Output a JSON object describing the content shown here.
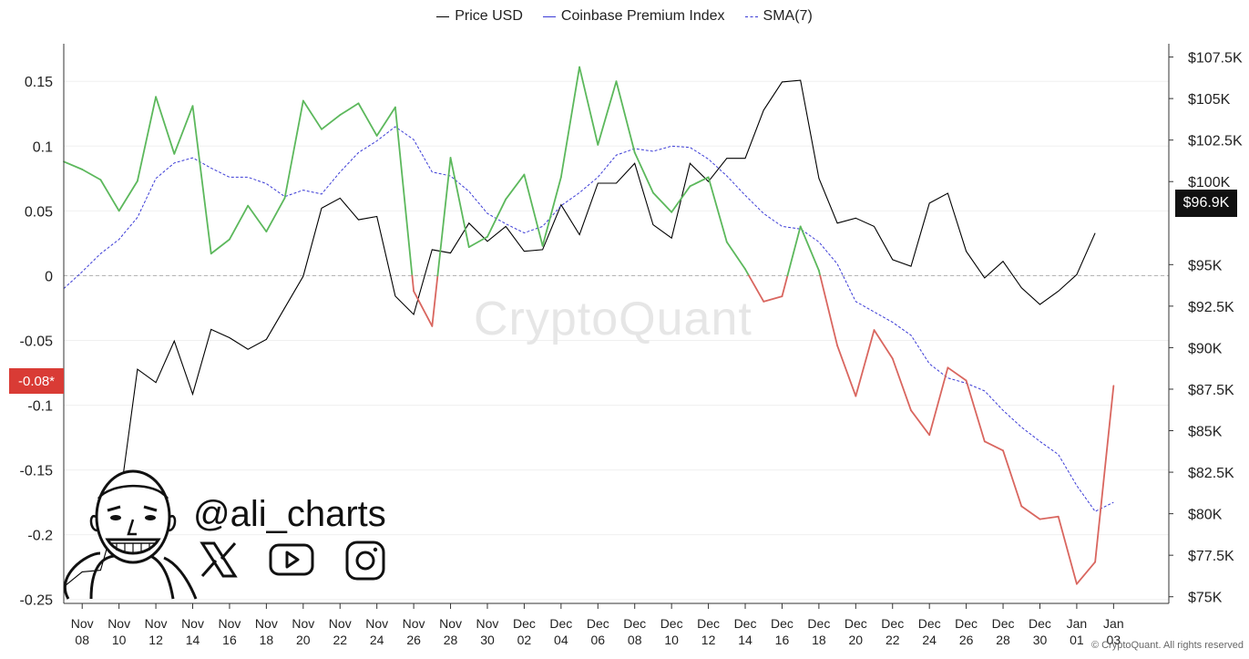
{
  "legend": [
    {
      "label": "Price USD",
      "color": "#000000",
      "style": "solid"
    },
    {
      "label": "Coinbase Premium Index",
      "color": "#3b3bd6",
      "style": "solid"
    },
    {
      "label": "SMA(7)",
      "color": "#3b3bd6",
      "style": "dashed"
    }
  ],
  "badges": {
    "left_value": "-0.08*",
    "right_value": "$96.9K"
  },
  "watermark": "CryptoQuant",
  "copyright": "© CryptoQuant. All rights reserved",
  "branding": {
    "handle": "@ali_charts",
    "icons": [
      "x-logo-icon",
      "youtube-icon",
      "instagram-icon"
    ]
  },
  "chart_data": {
    "type": "line",
    "x_tick_labels": [
      [
        "Nov",
        "08"
      ],
      [
        "Nov",
        "10"
      ],
      [
        "Nov",
        "12"
      ],
      [
        "Nov",
        "14"
      ],
      [
        "Nov",
        "16"
      ],
      [
        "Nov",
        "18"
      ],
      [
        "Nov",
        "20"
      ],
      [
        "Nov",
        "22"
      ],
      [
        "Nov",
        "24"
      ],
      [
        "Nov",
        "26"
      ],
      [
        "Nov",
        "28"
      ],
      [
        "Nov",
        "30"
      ],
      [
        "Dec",
        "02"
      ],
      [
        "Dec",
        "04"
      ],
      [
        "Dec",
        "06"
      ],
      [
        "Dec",
        "08"
      ],
      [
        "Dec",
        "10"
      ],
      [
        "Dec",
        "12"
      ],
      [
        "Dec",
        "14"
      ],
      [
        "Dec",
        "16"
      ],
      [
        "Dec",
        "18"
      ],
      [
        "Dec",
        "20"
      ],
      [
        "Dec",
        "22"
      ],
      [
        "Dec",
        "24"
      ],
      [
        "Dec",
        "26"
      ],
      [
        "Dec",
        "28"
      ],
      [
        "Dec",
        "30"
      ],
      [
        "Jan",
        "01"
      ],
      [
        "Jan",
        "03"
      ]
    ],
    "x_dates": [
      "2024-11-07",
      "2024-11-08",
      "2024-11-09",
      "2024-11-10",
      "2024-11-11",
      "2024-11-12",
      "2024-11-13",
      "2024-11-14",
      "2024-11-15",
      "2024-11-16",
      "2024-11-17",
      "2024-11-18",
      "2024-11-19",
      "2024-11-20",
      "2024-11-21",
      "2024-11-22",
      "2024-11-23",
      "2024-11-24",
      "2024-11-25",
      "2024-11-26",
      "2024-11-27",
      "2024-11-28",
      "2024-11-29",
      "2024-11-30",
      "2024-12-01",
      "2024-12-02",
      "2024-12-03",
      "2024-12-04",
      "2024-12-05",
      "2024-12-06",
      "2024-12-07",
      "2024-12-08",
      "2024-12-09",
      "2024-12-10",
      "2024-12-11",
      "2024-12-12",
      "2024-12-13",
      "2024-12-14",
      "2024-12-15",
      "2024-12-16",
      "2024-12-17",
      "2024-12-18",
      "2024-12-19",
      "2024-12-20",
      "2024-12-21",
      "2024-12-22",
      "2024-12-23",
      "2024-12-24",
      "2024-12-25",
      "2024-12-26",
      "2024-12-27",
      "2024-12-28",
      "2024-12-29",
      "2024-12-30",
      "2024-12-31",
      "2025-01-01",
      "2025-01-02",
      "2025-01-03",
      "2025-01-04",
      "2025-01-05",
      "2025-01-06"
    ],
    "left_axis": {
      "ticks": [
        0.15,
        0.1,
        0.05,
        0,
        -0.05,
        -0.1,
        -0.15,
        -0.2,
        -0.25
      ],
      "tick_labels": [
        "0.15",
        "0.1",
        "0.05",
        "0",
        "-0.05",
        "-0.1",
        "-0.15",
        "-0.2",
        "-0.25"
      ],
      "range": [
        -0.253,
        0.179
      ]
    },
    "right_axis": {
      "ticks": [
        107500,
        105000,
        102500,
        100000,
        95000,
        92500,
        90000,
        87500,
        85000,
        82500,
        80000,
        77500,
        75000
      ],
      "tick_labels": [
        "$107.5K",
        "$105K",
        "$102.5K",
        "$100K",
        "$95K",
        "$92.5K",
        "$90K",
        "$87.5K",
        "$85K",
        "$82.5K",
        "$80K",
        "$77.5K",
        "$75K"
      ],
      "range": [
        74600,
        108300
      ]
    },
    "series": [
      {
        "name": "Coinbase Premium Index",
        "axis": "left",
        "positive_color": "#5cb85c",
        "negative_color": "#d9665f",
        "points": [
          [
            "2024-11-07",
            0.088
          ],
          [
            "2024-11-08",
            0.082
          ],
          [
            "2024-11-09",
            0.074
          ],
          [
            "2024-11-10",
            0.05
          ],
          [
            "2024-11-11",
            0.073
          ],
          [
            "2024-11-12",
            0.138
          ],
          [
            "2024-11-13",
            0.094
          ],
          [
            "2024-11-14",
            0.131
          ],
          [
            "2024-11-15",
            0.017
          ],
          [
            "2024-11-16",
            0.028
          ],
          [
            "2024-11-17",
            0.054
          ],
          [
            "2024-11-18",
            0.034
          ],
          [
            "2024-11-19",
            0.06
          ],
          [
            "2024-11-20",
            0.135
          ],
          [
            "2024-11-21",
            0.113
          ],
          [
            "2024-11-22",
            0.124
          ],
          [
            "2024-11-23",
            0.133
          ],
          [
            "2024-11-24",
            0.108
          ],
          [
            "2024-11-25",
            0.13
          ],
          [
            "2024-11-26",
            -0.012
          ],
          [
            "2024-11-27",
            -0.039
          ],
          [
            "2024-11-28",
            0.091
          ],
          [
            "2024-11-29",
            0.022
          ],
          [
            "2024-11-30",
            0.03
          ],
          [
            "2024-12-01",
            0.059
          ],
          [
            "2024-12-02",
            0.078
          ],
          [
            "2024-12-03",
            0.023
          ],
          [
            "2024-12-04",
            0.076
          ],
          [
            "2024-12-05",
            0.161
          ],
          [
            "2024-12-06",
            0.101
          ],
          [
            "2024-12-07",
            0.15
          ],
          [
            "2024-12-08",
            0.095
          ],
          [
            "2024-12-09",
            0.064
          ],
          [
            "2024-12-10",
            0.049
          ],
          [
            "2024-12-11",
            0.069
          ],
          [
            "2024-12-12",
            0.076
          ],
          [
            "2024-12-13",
            0.026
          ],
          [
            "2024-12-14",
            0.005
          ],
          [
            "2024-12-15",
            -0.02
          ],
          [
            "2024-12-16",
            -0.016
          ],
          [
            "2024-12-17",
            0.038
          ],
          [
            "2024-12-18",
            0.004
          ],
          [
            "2024-12-19",
            -0.054
          ],
          [
            "2024-12-20",
            -0.093
          ],
          [
            "2024-12-21",
            -0.042
          ],
          [
            "2024-12-22",
            -0.064
          ],
          [
            "2024-12-23",
            -0.104
          ],
          [
            "2024-12-24",
            -0.123
          ],
          [
            "2024-12-25",
            -0.071
          ],
          [
            "2024-12-26",
            -0.081
          ],
          [
            "2024-12-27",
            -0.128
          ],
          [
            "2024-12-28",
            -0.135
          ],
          [
            "2024-12-29",
            -0.178
          ],
          [
            "2024-12-30",
            -0.188
          ],
          [
            "2024-12-31",
            -0.186
          ],
          [
            "2025-01-01",
            -0.238
          ],
          [
            "2025-01-02",
            -0.221
          ],
          [
            "2025-01-03",
            -0.085
          ]
        ]
      },
      {
        "name": "SMA(7)",
        "axis": "left",
        "color": "#3b3bd6",
        "points": [
          [
            "2024-11-07",
            -0.01
          ],
          [
            "2024-11-08",
            0.003
          ],
          [
            "2024-11-09",
            0.017
          ],
          [
            "2024-11-10",
            0.028
          ],
          [
            "2024-11-11",
            0.045
          ],
          [
            "2024-11-12",
            0.075
          ],
          [
            "2024-11-13",
            0.087
          ],
          [
            "2024-11-14",
            0.091
          ],
          [
            "2024-11-15",
            0.083
          ],
          [
            "2024-11-16",
            0.076
          ],
          [
            "2024-11-17",
            0.076
          ],
          [
            "2024-11-18",
            0.071
          ],
          [
            "2024-11-19",
            0.061
          ],
          [
            "2024-11-20",
            0.066
          ],
          [
            "2024-11-21",
            0.063
          ],
          [
            "2024-11-22",
            0.08
          ],
          [
            "2024-11-23",
            0.095
          ],
          [
            "2024-11-24",
            0.104
          ],
          [
            "2024-11-25",
            0.115
          ],
          [
            "2024-11-26",
            0.105
          ],
          [
            "2024-11-27",
            0.08
          ],
          [
            "2024-11-28",
            0.077
          ],
          [
            "2024-11-29",
            0.065
          ],
          [
            "2024-11-30",
            0.048
          ],
          [
            "2024-12-01",
            0.04
          ],
          [
            "2024-12-02",
            0.033
          ],
          [
            "2024-12-03",
            0.038
          ],
          [
            "2024-12-04",
            0.054
          ],
          [
            "2024-12-05",
            0.064
          ],
          [
            "2024-12-06",
            0.076
          ],
          [
            "2024-12-07",
            0.093
          ],
          [
            "2024-12-08",
            0.098
          ],
          [
            "2024-12-09",
            0.096
          ],
          [
            "2024-12-10",
            0.1
          ],
          [
            "2024-12-11",
            0.099
          ],
          [
            "2024-12-12",
            0.09
          ],
          [
            "2024-12-13",
            0.077
          ],
          [
            "2024-12-14",
            0.062
          ],
          [
            "2024-12-15",
            0.048
          ],
          [
            "2024-12-16",
            0.038
          ],
          [
            "2024-12-17",
            0.036
          ],
          [
            "2024-12-18",
            0.026
          ],
          [
            "2024-12-19",
            0.009
          ],
          [
            "2024-12-20",
            -0.02
          ],
          [
            "2024-12-21",
            -0.028
          ],
          [
            "2024-12-22",
            -0.036
          ],
          [
            "2024-12-23",
            -0.046
          ],
          [
            "2024-12-24",
            -0.068
          ],
          [
            "2024-12-25",
            -0.079
          ],
          [
            "2024-12-26",
            -0.083
          ],
          [
            "2024-12-27",
            -0.089
          ],
          [
            "2024-12-28",
            -0.104
          ],
          [
            "2024-12-29",
            -0.117
          ],
          [
            "2024-12-30",
            -0.128
          ],
          [
            "2024-12-31",
            -0.138
          ],
          [
            "2025-01-01",
            -0.162
          ],
          [
            "2025-01-02",
            -0.182
          ],
          [
            "2025-01-03",
            -0.175
          ]
        ]
      },
      {
        "name": "Price USD",
        "axis": "right",
        "color": "#000000",
        "points": [
          [
            "2024-11-07",
            75600
          ],
          [
            "2024-11-08",
            76500
          ],
          [
            "2024-11-09",
            76600
          ],
          [
            "2024-11-10",
            80500
          ],
          [
            "2024-11-11",
            88700
          ],
          [
            "2024-11-12",
            87900
          ],
          [
            "2024-11-13",
            90400
          ],
          [
            "2024-11-14",
            87200
          ],
          [
            "2024-11-15",
            91100
          ],
          [
            "2024-11-16",
            90600
          ],
          [
            "2024-11-17",
            89900
          ],
          [
            "2024-11-18",
            90500
          ],
          [
            "2024-11-19",
            92400
          ],
          [
            "2024-11-20",
            94300
          ],
          [
            "2024-11-21",
            98400
          ],
          [
            "2024-11-22",
            99000
          ],
          [
            "2024-11-23",
            97700
          ],
          [
            "2024-11-24",
            97900
          ],
          [
            "2024-11-25",
            93100
          ],
          [
            "2024-11-26",
            92000
          ],
          [
            "2024-11-27",
            95900
          ],
          [
            "2024-11-28",
            95700
          ],
          [
            "2024-11-29",
            97500
          ],
          [
            "2024-11-30",
            96400
          ],
          [
            "2024-12-01",
            97300
          ],
          [
            "2024-12-02",
            95800
          ],
          [
            "2024-12-03",
            95900
          ],
          [
            "2024-12-04",
            98600
          ],
          [
            "2024-12-05",
            96800
          ],
          [
            "2024-12-06",
            99900
          ],
          [
            "2024-12-07",
            99900
          ],
          [
            "2024-12-08",
            101100
          ],
          [
            "2024-12-09",
            97400
          ],
          [
            "2024-12-10",
            96600
          ],
          [
            "2024-12-11",
            101100
          ],
          [
            "2024-12-12",
            100000
          ],
          [
            "2024-12-13",
            101400
          ],
          [
            "2024-12-14",
            101400
          ],
          [
            "2024-12-15",
            104300
          ],
          [
            "2024-12-16",
            106000
          ],
          [
            "2024-12-17",
            106100
          ],
          [
            "2024-12-18",
            100200
          ],
          [
            "2024-12-19",
            97500
          ],
          [
            "2024-12-20",
            97800
          ],
          [
            "2024-12-21",
            97300
          ],
          [
            "2024-12-22",
            95300
          ],
          [
            "2024-12-23",
            94900
          ],
          [
            "2024-12-24",
            98700
          ],
          [
            "2024-12-25",
            99300
          ],
          [
            "2024-12-26",
            95800
          ],
          [
            "2024-12-27",
            94200
          ],
          [
            "2024-12-28",
            95200
          ],
          [
            "2024-12-29",
            93600
          ],
          [
            "2024-12-30",
            92600
          ],
          [
            "2024-12-31",
            93400
          ],
          [
            "2025-01-01",
            94400
          ],
          [
            "2025-01-02",
            96900
          ]
        ]
      }
    ],
    "zero_line": {
      "value": 0,
      "style": "dashed",
      "color": "#b0b0b0"
    },
    "grid": "horizontal",
    "legend_position": "top-center"
  }
}
